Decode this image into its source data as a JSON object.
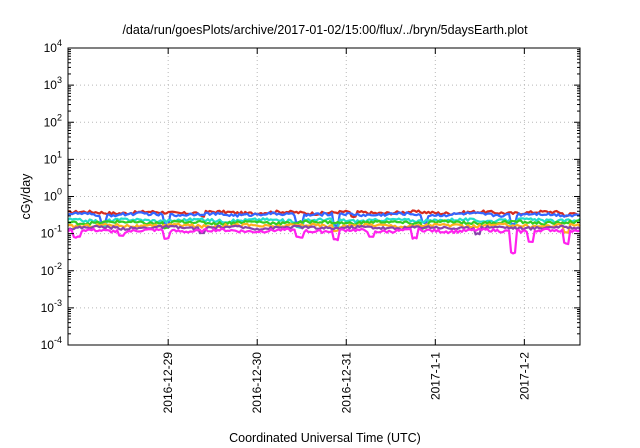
{
  "chart_data": {
    "type": "line",
    "title": "/data/run/goesPlots/archive/2017-01-02/15:00/flux/../bryn/5daysEarth.plot",
    "xlabel": "Coordinated Universal Time (UTC)",
    "ylabel": "cGy/day",
    "yscale": "log",
    "ylim": [
      0.0001,
      10000
    ],
    "y_ticks": [
      {
        "base": "10",
        "exp": "-4",
        "value": 0.0001
      },
      {
        "base": "10",
        "exp": "-3",
        "value": 0.001
      },
      {
        "base": "10",
        "exp": "-2",
        "value": 0.01
      },
      {
        "base": "10",
        "exp": "-1",
        "value": 0.1
      },
      {
        "base": "10",
        "exp": "0",
        "value": 1
      },
      {
        "base": "10",
        "exp": "1",
        "value": 10
      },
      {
        "base": "10",
        "exp": "2",
        "value": 100
      },
      {
        "base": "10",
        "exp": "3",
        "value": 1000
      },
      {
        "base": "10",
        "exp": "4",
        "value": 10000
      }
    ],
    "x_range": [
      "2016-12-27T21:00",
      "2017-01-02T15:00"
    ],
    "x_ticks": [
      {
        "label": "2016-12-29",
        "value": "2016-12-29T00:00"
      },
      {
        "label": "2016-12-30",
        "value": "2016-12-30T00:00"
      },
      {
        "label": "2016-12-31",
        "value": "2016-12-31T00:00"
      },
      {
        "label": "2017-1-1",
        "value": "2017-01-01T00:00"
      },
      {
        "label": "2017-1-2",
        "value": "2017-01-02T00:00"
      }
    ],
    "grid": true,
    "legend": "none",
    "series": [
      {
        "color": "#d42a1f",
        "base": 0.37,
        "drops": [
          {
            "t": 1.5,
            "v": 0.3
          },
          {
            "t": 3.2,
            "v": 0.28
          },
          {
            "t": 5.6,
            "v": 0.3
          }
        ]
      },
      {
        "color": "#3366ff",
        "base": 0.33,
        "drops": [
          {
            "t": 0.4,
            "v": 0.2
          },
          {
            "t": 1.1,
            "v": 0.18
          },
          {
            "t": 2.6,
            "v": 0.2
          },
          {
            "t": 3.0,
            "v": 0.17
          },
          {
            "t": 4.0,
            "v": 0.2
          },
          {
            "t": 5.0,
            "v": 0.18
          },
          {
            "t": 5.8,
            "v": 0.2
          }
        ]
      },
      {
        "color": "#22ddcc",
        "base": 0.23,
        "drops": [
          {
            "t": 0.4,
            "v": 0.16
          },
          {
            "t": 2.6,
            "v": 0.15
          },
          {
            "t": 3.0,
            "v": 0.14
          },
          {
            "t": 5.0,
            "v": 0.15
          }
        ]
      },
      {
        "color": "#33cc22",
        "base": 0.2,
        "drops": [
          {
            "t": 1.1,
            "v": 0.14
          },
          {
            "t": 4.0,
            "v": 0.14
          }
        ]
      },
      {
        "color": "#ffb020",
        "base": 0.165,
        "drops": [
          {
            "t": 3.0,
            "v": 0.12
          },
          {
            "t": 5.6,
            "v": 0.11
          }
        ]
      },
      {
        "color": "#8844aa",
        "base": 0.145,
        "drops": [
          {
            "t": 1.5,
            "v": 0.1
          },
          {
            "t": 4.6,
            "v": 0.1
          }
        ]
      },
      {
        "color": "#ff22ee",
        "base": 0.12,
        "drops": [
          {
            "t": 0.1,
            "v": 0.08
          },
          {
            "t": 0.6,
            "v": 0.085
          },
          {
            "t": 1.1,
            "v": 0.075
          },
          {
            "t": 2.6,
            "v": 0.08
          },
          {
            "t": 3.0,
            "v": 0.07
          },
          {
            "t": 3.4,
            "v": 0.08
          },
          {
            "t": 3.9,
            "v": 0.075
          },
          {
            "t": 5.0,
            "v": 0.03
          },
          {
            "t": 5.2,
            "v": 0.06
          },
          {
            "t": 5.6,
            "v": 0.055
          },
          {
            "t": 5.9,
            "v": 0.035
          }
        ]
      }
    ]
  }
}
